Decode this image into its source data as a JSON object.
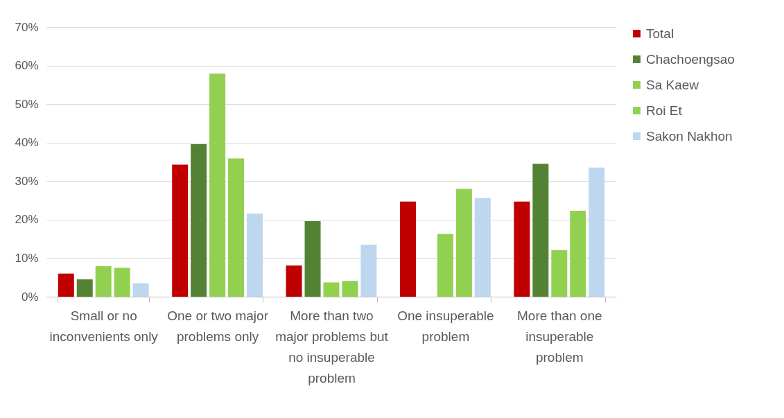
{
  "chart_data": {
    "type": "bar",
    "categories": [
      "Small or no inconvenients only",
      "One or two major problems only",
      "More than two major problems but no insuperable problem",
      "One insuperable problem",
      "More than one insuperable problem"
    ],
    "series": [
      {
        "name": "Total",
        "color": "#c00000",
        "values": [
          6.0,
          34.3,
          8.1,
          24.7,
          24.7
        ]
      },
      {
        "name": "Chachoengsao",
        "color": "#548235",
        "values": [
          4.5,
          39.6,
          19.6,
          0,
          34.5
        ]
      },
      {
        "name": "Sa Kaew",
        "color": "#92d050",
        "values": [
          7.9,
          57.9,
          3.7,
          16.3,
          12.1
        ]
      },
      {
        "name": "Roi Et",
        "color": "#92d050",
        "values": [
          7.5,
          35.9,
          4.1,
          28.0,
          22.3
        ]
      },
      {
        "name": "Sakon Nakhon",
        "color": "#bdd7ee",
        "values": [
          3.5,
          21.6,
          13.5,
          25.6,
          33.5
        ]
      }
    ],
    "ylim": [
      0,
      70
    ],
    "yticks": [
      {
        "value": 0,
        "label": "0%"
      },
      {
        "value": 10,
        "label": "10%"
      },
      {
        "value": 20,
        "label": "20%"
      },
      {
        "value": 30,
        "label": "30%"
      },
      {
        "value": 40,
        "label": "40%"
      },
      {
        "value": 50,
        "label": "50%"
      },
      {
        "value": 60,
        "label": "60%"
      },
      {
        "value": 70,
        "label": "70%"
      }
    ],
    "grid": "y",
    "legend": "right"
  }
}
